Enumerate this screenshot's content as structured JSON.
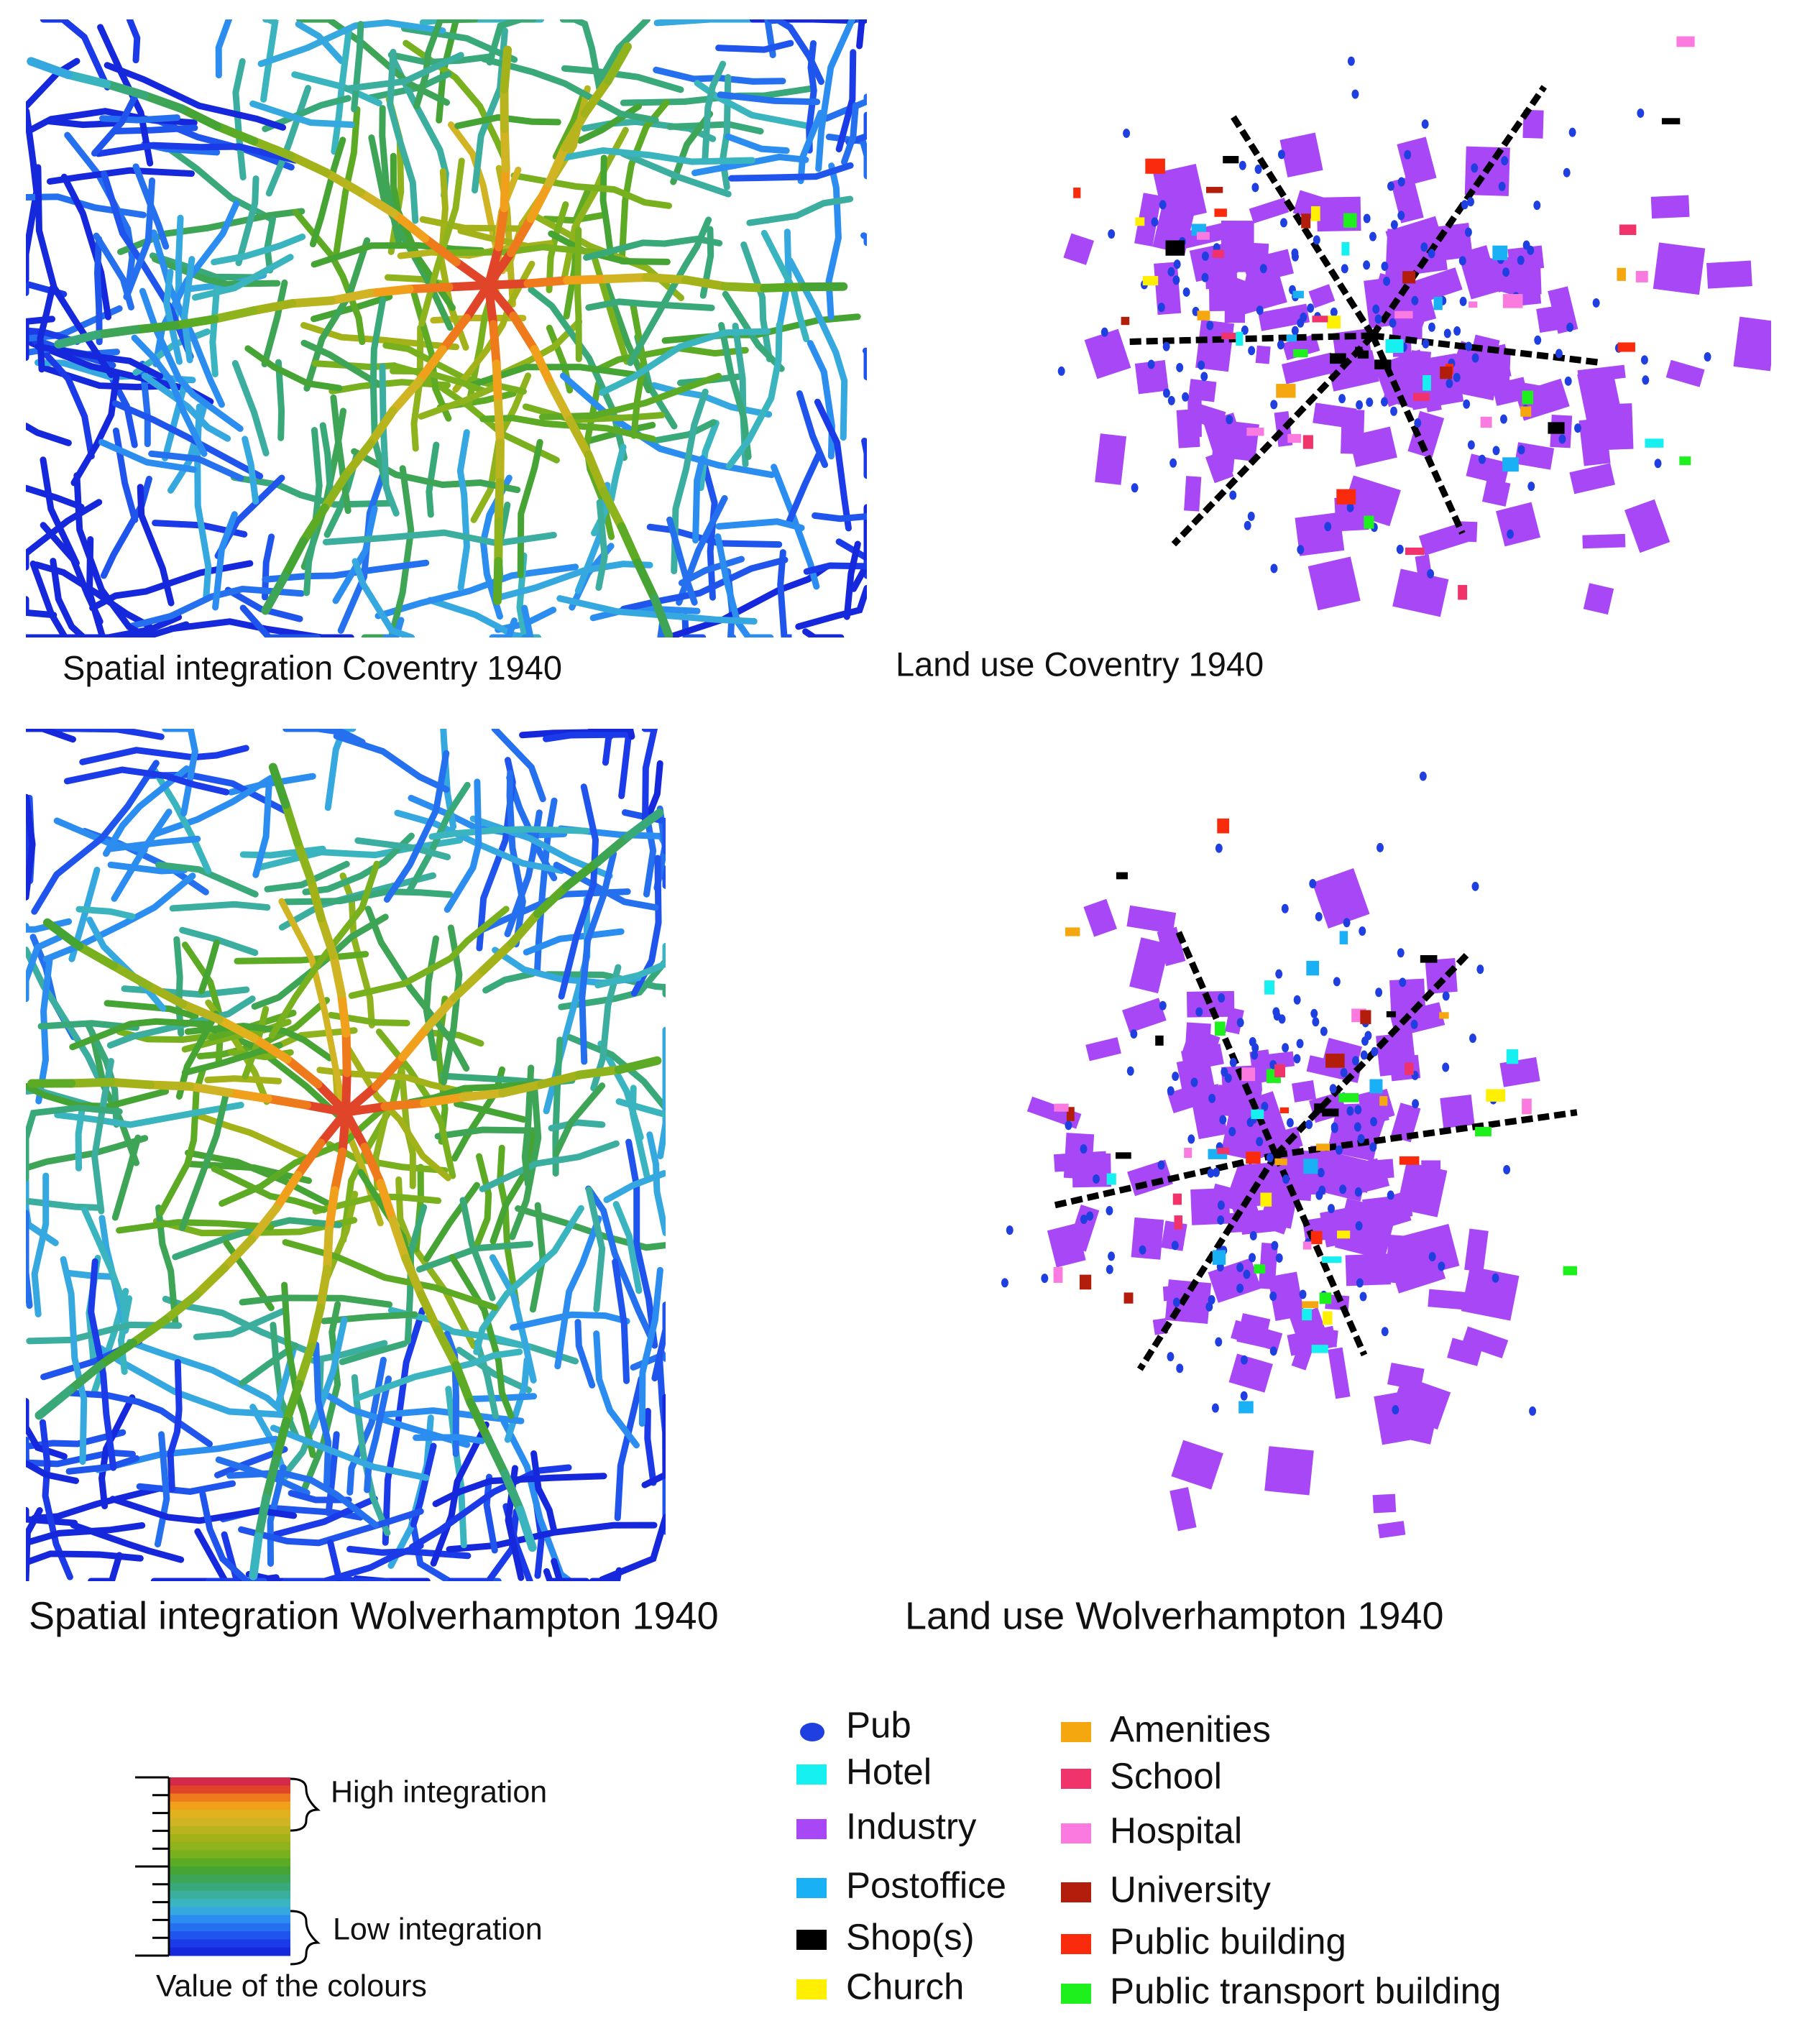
{
  "panels": [
    {
      "caption": "Spatial integration Coventry 1940",
      "kind": "integration"
    },
    {
      "caption": "Land use Coventry 1940",
      "kind": "land_use"
    },
    {
      "caption": "Spatial integration Wolverhampton 1940",
      "kind": "integration"
    },
    {
      "caption": "Land use Wolverhampton 1940",
      "kind": "land_use"
    }
  ],
  "colour_scale": {
    "high_label": "High integration",
    "low_label": "Low integration",
    "caption": "Value of the colours",
    "colors": [
      "#d42a4a",
      "#e0452a",
      "#ef7a1c",
      "#f0a01a",
      "#e2b21c",
      "#d1b423",
      "#b7b41e",
      "#a4b21a",
      "#8fb31c",
      "#78b01e",
      "#5daa24",
      "#46a434",
      "#3ea556",
      "#3aa97a",
      "#3baea0",
      "#3ab5c0",
      "#36a8e0",
      "#2b8df0",
      "#2470ef",
      "#1f55ec",
      "#1b3ae8",
      "#1628dc"
    ]
  },
  "land_use_legend": [
    {
      "label": "Pub",
      "color": "#1f3fe0",
      "marker": "ellipse"
    },
    {
      "label": "Hotel",
      "color": "#16f0f0",
      "marker": "square"
    },
    {
      "label": "Industry",
      "color": "#a747f5",
      "marker": "square"
    },
    {
      "label": "Postoffice",
      "color": "#1ab0f5",
      "marker": "square"
    },
    {
      "label": "Shop(s)",
      "color": "#000000",
      "marker": "square"
    },
    {
      "label": "Church",
      "color": "#ffef00",
      "marker": "square"
    },
    {
      "label": "Amenities",
      "color": "#f5a70f",
      "marker": "square"
    },
    {
      "label": "School",
      "color": "#f0346b",
      "marker": "square"
    },
    {
      "label": "Hospital",
      "color": "#fa7ae0",
      "marker": "square"
    },
    {
      "label": "University",
      "color": "#b31d0c",
      "marker": "square"
    },
    {
      "label": "Public building",
      "color": "#fa2a0c",
      "marker": "square"
    },
    {
      "label": "Public transport building",
      "color": "#1ef01e",
      "marker": "square"
    }
  ]
}
